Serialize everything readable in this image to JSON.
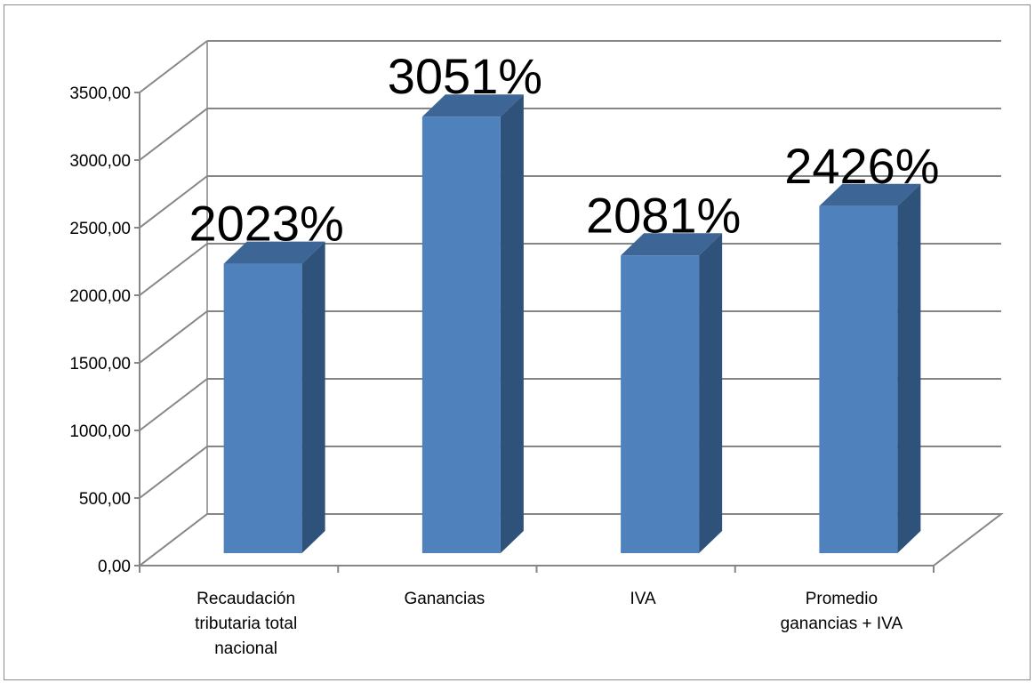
{
  "chart_data": {
    "type": "bar",
    "style": "3d-column",
    "categories": [
      [
        "Recaudación",
        "tributaria total",
        "nacional"
      ],
      [
        "Ganancias"
      ],
      [
        "IVA"
      ],
      [
        "Promedio",
        "ganancias + IVA"
      ]
    ],
    "values": [
      2023,
      3051,
      2081,
      2426
    ],
    "data_labels": [
      "2023%",
      "3051%",
      "2081%",
      "2426%"
    ],
    "y_ticks": [
      "0,00",
      "500,00",
      "1000,00",
      "1500,00",
      "2000,00",
      "2500,00",
      "3000,00",
      "3500,00"
    ],
    "ylim": [
      0,
      3500
    ],
    "grid": true,
    "legend": "none",
    "colors": {
      "bar_front": "#4f81bd",
      "bar_side": "#2f527a",
      "bar_top": "#3d6596",
      "grid": "#868686"
    }
  }
}
